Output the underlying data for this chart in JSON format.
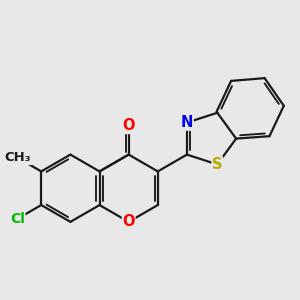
{
  "background_color": "#e8e8e8",
  "bond_color": "#1a1a1a",
  "bond_width": 1.6,
  "atom_colors": {
    "O": "#ff0000",
    "N": "#0000ee",
    "S": "#bbaa00",
    "Cl": "#00bb00",
    "C": "#1a1a1a"
  },
  "font_size_atom": 10.5,
  "font_size_methyl": 9.5
}
